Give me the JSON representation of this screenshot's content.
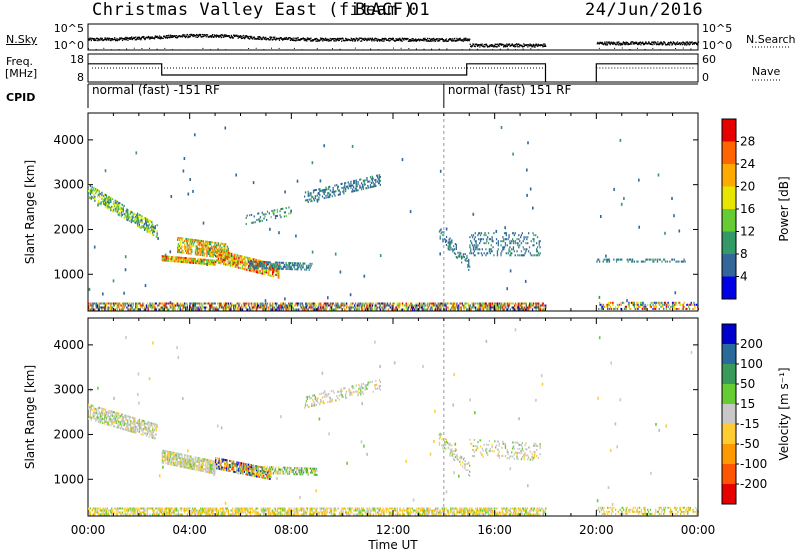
{
  "header": {
    "title": "Christmas Valley East (fitACF)",
    "beam": "Beam 01",
    "date": "24/Jun/2016"
  },
  "strip_labels": {
    "nsky": "N.Sky",
    "freq_top": "Freq.",
    "freq_unit": "[MHz]",
    "cpid": "CPID",
    "nsearch": "N.Search",
    "nave": "Nave"
  },
  "chart_data": [
    {
      "type": "scatter",
      "panel": "noise",
      "left_axis": {
        "ticks": [
          "10^5",
          "10^0"
        ]
      },
      "right_axis": {
        "ticks": [
          "10^5",
          "10^0"
        ]
      },
      "data_gaps_hours": [
        [
          18.0,
          20.0
        ]
      ]
    },
    {
      "type": "line",
      "panel": "frequency",
      "left_axis": {
        "label": "Freq. [MHz]",
        "ticks": [
          18,
          8
        ],
        "ylim": [
          8,
          18
        ]
      },
      "right_axis": {
        "label": "Nave",
        "ticks": [
          60,
          0
        ],
        "ylim": [
          0,
          60
        ]
      },
      "freq_series": {
        "x": [
          0.0,
          2.9,
          2.9,
          14.9,
          14.9,
          18.0,
          20.0,
          24.0
        ],
        "values": [
          14.5,
          14.5,
          10.5,
          10.5,
          14.5,
          14.5,
          14.5,
          14.5
        ]
      },
      "nave_level": 30
    },
    {
      "type": "table",
      "panel": "cpid",
      "segments": [
        {
          "label": "normal (fast) -151 RF",
          "start": "00:00"
        },
        {
          "label": "normal (fast) 151 RF",
          "start": "14:00"
        }
      ]
    },
    {
      "type": "heatmap",
      "panel": "power",
      "ylabel": "Slant Range [km]",
      "y_ticks": [
        1000,
        2000,
        3000,
        4000
      ],
      "ylim": [
        180,
        4600
      ],
      "colorbar": {
        "label": "Power [dB]",
        "ticks": [
          "28",
          "24",
          "20",
          "16",
          "12",
          "8",
          "4"
        ],
        "colors": [
          "#e60000",
          "#ff6600",
          "#ffaa00",
          "#e6e600",
          "#66cc33",
          "#339966",
          "#336699",
          "#0000e6"
        ]
      },
      "features": [
        {
          "t0": 0.0,
          "t1": 2.7,
          "r0": 2850,
          "r1": 1950,
          "width": 300,
          "level": "mid",
          "density": 0.55
        },
        {
          "t0": 2.9,
          "t1": 5.0,
          "r0": 1350,
          "r1": 1250,
          "width": 120,
          "level": "high",
          "density": 0.9
        },
        {
          "t0": 3.5,
          "t1": 5.5,
          "r0": 1650,
          "r1": 1500,
          "width": 350,
          "level": "midhigh",
          "density": 0.65
        },
        {
          "t0": 5.0,
          "t1": 7.5,
          "r0": 1400,
          "r1": 1050,
          "width": 300,
          "level": "high",
          "density": 0.7
        },
        {
          "t0": 6.3,
          "t1": 8.8,
          "r0": 1200,
          "r1": 1150,
          "width": 150,
          "level": "low",
          "density": 0.5
        },
        {
          "t0": 6.2,
          "t1": 8.0,
          "r0": 2200,
          "r1": 2400,
          "width": 200,
          "level": "lowmid",
          "density": 0.2
        },
        {
          "t0": 8.5,
          "t1": 11.5,
          "r0": 2700,
          "r1": 3100,
          "width": 250,
          "level": "low",
          "density": 0.35
        },
        {
          "t0": 13.8,
          "t1": 15.0,
          "r0": 1900,
          "r1": 1200,
          "width": 300,
          "level": "low",
          "density": 0.35
        },
        {
          "t0": 15.0,
          "t1": 17.8,
          "r0": 1650,
          "r1": 1650,
          "width": 500,
          "level": "low",
          "density": 0.2
        },
        {
          "t0": 0.0,
          "t1": 18.0,
          "r0": 280,
          "r1": 280,
          "width": 180,
          "level": "mixed",
          "density": 0.6
        },
        {
          "t0": 20.0,
          "t1": 24.0,
          "r0": 280,
          "r1": 280,
          "width": 150,
          "level": "mixed",
          "density": 0.35
        },
        {
          "t0": 20.0,
          "t1": 23.5,
          "r0": 1300,
          "r1": 1300,
          "width": 80,
          "level": "low",
          "density": 0.3
        }
      ]
    },
    {
      "type": "heatmap",
      "panel": "velocity",
      "ylabel": "Slant Range [km]",
      "y_ticks": [
        1000,
        2000,
        3000,
        4000
      ],
      "ylim": [
        180,
        4600
      ],
      "x_ticks": [
        "00:00",
        "04:00",
        "08:00",
        "12:00",
        "16:00",
        "20:00",
        "00:00"
      ],
      "xlabel": "Time UT",
      "xlim_hours": [
        0,
        24
      ],
      "colorbar": {
        "label": "Velocity [m s⁻¹]",
        "ticks": [
          "200",
          "100",
          "50",
          "15",
          "-15",
          "-50",
          "-100",
          "-200"
        ],
        "colors": [
          "#0000cc",
          "#2a6a9a",
          "#3a9a5a",
          "#66cc33",
          "#c8c8c8",
          "#ffcc33",
          "#ff9900",
          "#ff5500",
          "#e60000"
        ]
      },
      "features": [
        {
          "t0": 0.0,
          "t1": 2.7,
          "r0": 2500,
          "r1": 2050,
          "width": 350,
          "level": "gray",
          "density": 0.55
        },
        {
          "t0": 2.9,
          "t1": 5.0,
          "r0": 1500,
          "r1": 1250,
          "width": 300,
          "level": "gray",
          "density": 0.75
        },
        {
          "t0": 5.0,
          "t1": 7.2,
          "r0": 1350,
          "r1": 1100,
          "width": 250,
          "level": "neg",
          "density": 0.7
        },
        {
          "t0": 6.5,
          "t1": 9.0,
          "r0": 1200,
          "r1": 1150,
          "width": 150,
          "level": "pos",
          "density": 0.5
        },
        {
          "t0": 8.5,
          "t1": 11.5,
          "r0": 2700,
          "r1": 3100,
          "width": 250,
          "level": "gray",
          "density": 0.3
        },
        {
          "t0": 13.8,
          "t1": 15.0,
          "r0": 1900,
          "r1": 1200,
          "width": 300,
          "level": "gray",
          "density": 0.3
        },
        {
          "t0": 15.0,
          "t1": 17.8,
          "r0": 1700,
          "r1": 1600,
          "width": 400,
          "level": "gray",
          "density": 0.18
        },
        {
          "t0": 0.0,
          "t1": 18.0,
          "r0": 280,
          "r1": 280,
          "width": 180,
          "level": "gnd",
          "density": 0.55
        },
        {
          "t0": 20.0,
          "t1": 24.0,
          "r0": 280,
          "r1": 280,
          "width": 150,
          "level": "gnd",
          "density": 0.35
        }
      ]
    }
  ]
}
